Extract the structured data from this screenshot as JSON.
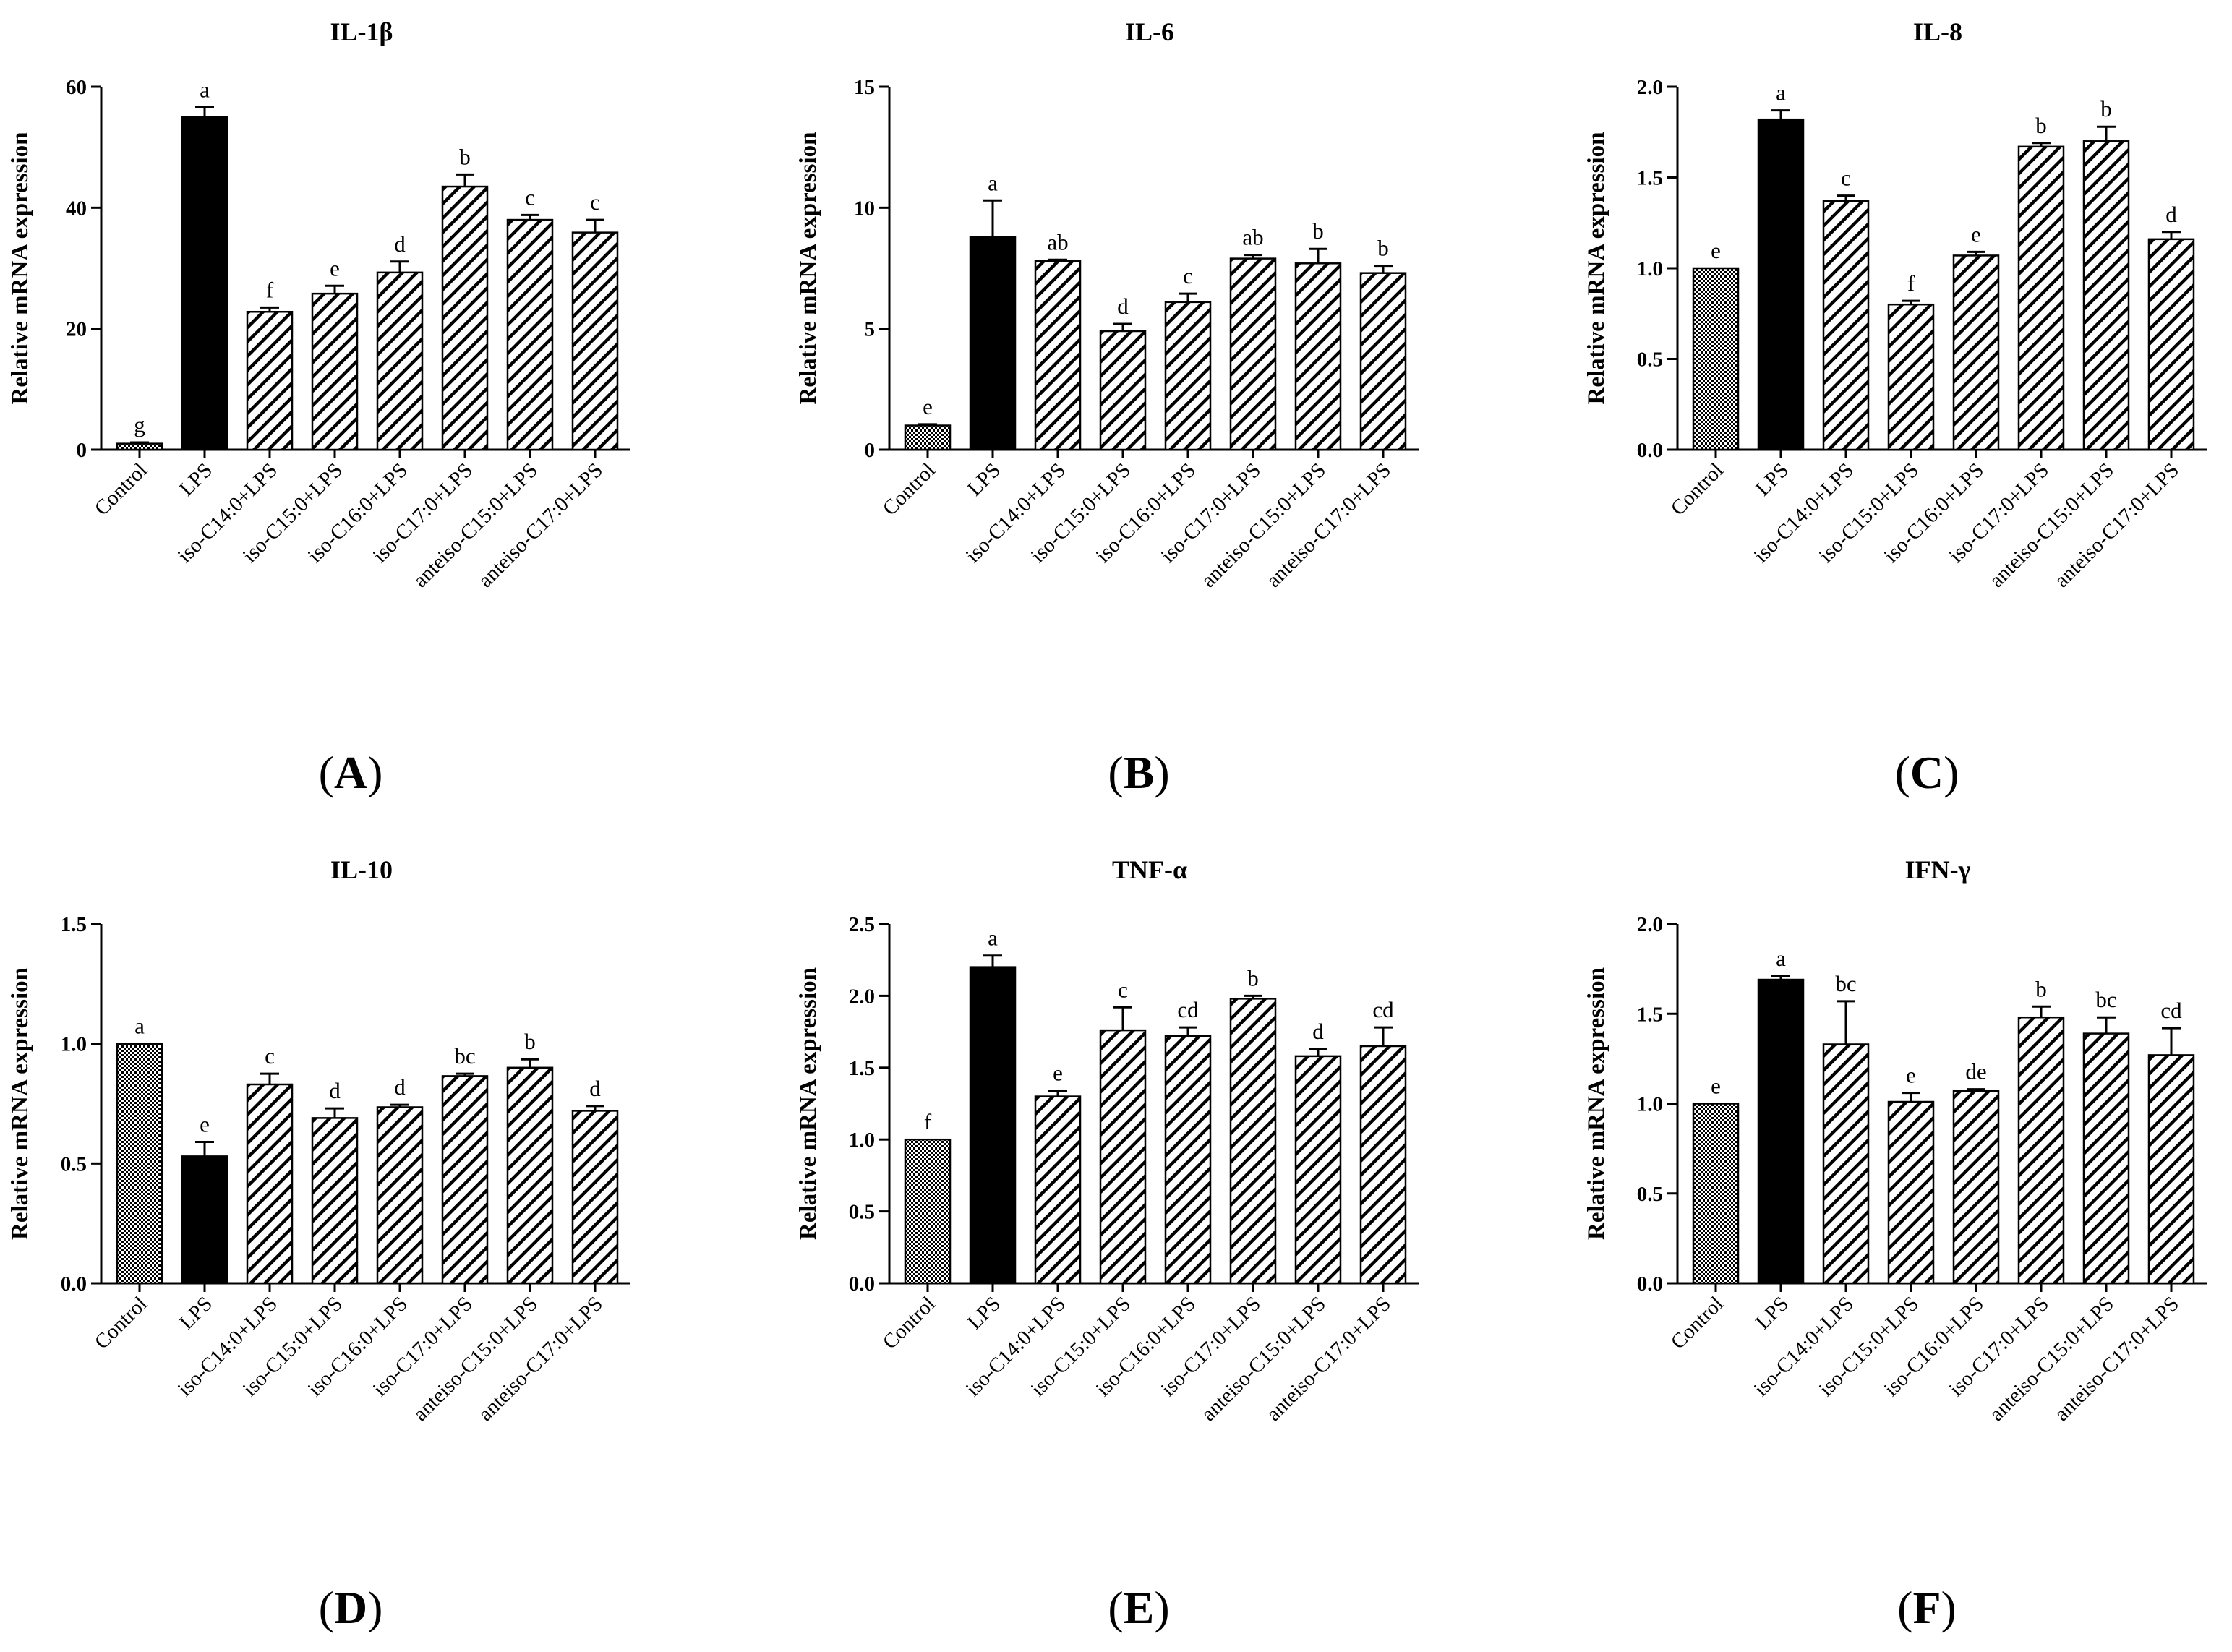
{
  "figure": {
    "categories": [
      "Control",
      "LPS",
      "iso-C14:0+LPS",
      "iso-C15:0+LPS",
      "iso-C16:0+LPS",
      "iso-C17:0+LPS",
      "anteiso-C15:0+LPS",
      "anteiso-C17:0+LPS"
    ],
    "bar_fills": [
      "checker",
      "solid",
      "hatch",
      "hatch",
      "hatch",
      "hatch",
      "hatch",
      "hatch"
    ]
  },
  "chart_data": [
    {
      "panel": "A",
      "type": "bar",
      "title": "IL-1β",
      "ylabel": "Relative mRNA expression",
      "xlabel": "",
      "ylim": [
        0,
        60
      ],
      "yticks": [
        0,
        20,
        40,
        60
      ],
      "ytick_labels": [
        "0",
        "20",
        "40",
        "60"
      ],
      "categories": [
        "Control",
        "LPS",
        "iso-C14:0+LPS",
        "iso-C15:0+LPS",
        "iso-C16:0+LPS",
        "iso-C17:0+LPS",
        "anteiso-C15:0+LPS",
        "anteiso-C17:0+LPS"
      ],
      "values": [
        1.0,
        55.0,
        22.8,
        25.8,
        29.3,
        43.5,
        38.0,
        35.9
      ],
      "errors": [
        0.2,
        1.6,
        0.7,
        1.3,
        1.8,
        2.0,
        0.8,
        2.1
      ],
      "letters": [
        "g",
        "a",
        "f",
        "e",
        "d",
        "b",
        "c",
        "c"
      ],
      "panel_label": {
        "open": "(",
        "letter": "A",
        "close": ")"
      }
    },
    {
      "panel": "B",
      "type": "bar",
      "title": "IL-6",
      "ylabel": "Relative mRNA expression",
      "xlabel": "",
      "ylim": [
        0,
        15
      ],
      "yticks": [
        0,
        5,
        10,
        15
      ],
      "ytick_labels": [
        "0",
        "5",
        "10",
        "15"
      ],
      "categories": [
        "Control",
        "LPS",
        "iso-C14:0+LPS",
        "iso-C15:0+LPS",
        "iso-C16:0+LPS",
        "iso-C17:0+LPS",
        "anteiso-C15:0+LPS",
        "anteiso-C17:0+LPS"
      ],
      "values": [
        1.0,
        8.8,
        7.8,
        4.9,
        6.1,
        7.9,
        7.7,
        7.3
      ],
      "errors": [
        0.05,
        1.5,
        0.05,
        0.3,
        0.35,
        0.15,
        0.6,
        0.3
      ],
      "letters": [
        "e",
        "a",
        "ab",
        "d",
        "c",
        "ab",
        "b",
        "b"
      ],
      "panel_label": {
        "open": "(",
        "letter": "B",
        "close": ")"
      }
    },
    {
      "panel": "C",
      "type": "bar",
      "title": "IL-8",
      "ylabel": "Relative mRNA expression",
      "xlabel": "",
      "ylim": [
        0,
        2.0
      ],
      "yticks": [
        0,
        0.5,
        1.0,
        1.5,
        2.0
      ],
      "ytick_labels": [
        "0.0",
        "0.5",
        "1.0",
        "1.5",
        "2.0"
      ],
      "categories": [
        "Control",
        "LPS",
        "iso-C14:0+LPS",
        "iso-C15:0+LPS",
        "iso-C16:0+LPS",
        "iso-C17:0+LPS",
        "anteiso-C15:0+LPS",
        "anteiso-C17:0+LPS"
      ],
      "values": [
        1.0,
        1.82,
        1.37,
        0.8,
        1.07,
        1.67,
        1.7,
        1.16
      ],
      "errors": [
        0.0,
        0.05,
        0.03,
        0.02,
        0.02,
        0.02,
        0.08,
        0.04
      ],
      "letters": [
        "e",
        "a",
        "c",
        "f",
        "e",
        "b",
        "b",
        "d"
      ],
      "panel_label": {
        "open": "(",
        "letter": "C",
        "close": ")"
      }
    },
    {
      "panel": "D",
      "type": "bar",
      "title": "IL-10",
      "ylabel": "Relative mRNA expression",
      "xlabel": "",
      "ylim": [
        0,
        1.5
      ],
      "yticks": [
        0,
        0.5,
        1.0,
        1.5
      ],
      "ytick_labels": [
        "0.0",
        "0.5",
        "1.0",
        "1.5"
      ],
      "categories": [
        "Control",
        "LPS",
        "iso-C14:0+LPS",
        "iso-C15:0+LPS",
        "iso-C16:0+LPS",
        "iso-C17:0+LPS",
        "anteiso-C15:0+LPS",
        "anteiso-C17:0+LPS"
      ],
      "values": [
        1.0,
        0.53,
        0.83,
        0.69,
        0.735,
        0.865,
        0.9,
        0.72
      ],
      "errors": [
        0.0,
        0.06,
        0.045,
        0.04,
        0.01,
        0.01,
        0.035,
        0.02
      ],
      "letters": [
        "a",
        "e",
        "c",
        "d",
        "d",
        "bc",
        "b",
        "d"
      ],
      "panel_label": {
        "open": "(",
        "letter": "D",
        "close": ")"
      }
    },
    {
      "panel": "E",
      "type": "bar",
      "title": "TNF-α",
      "ylabel": "Relative mRNA expression",
      "xlabel": "",
      "ylim": [
        0,
        2.5
      ],
      "yticks": [
        0,
        0.5,
        1.0,
        1.5,
        2.0,
        2.5
      ],
      "ytick_labels": [
        "0.0",
        "0.5",
        "1.0",
        "1.5",
        "2.0",
        "2.5"
      ],
      "categories": [
        "Control",
        "LPS",
        "iso-C14:0+LPS",
        "iso-C15:0+LPS",
        "iso-C16:0+LPS",
        "iso-C17:0+LPS",
        "anteiso-C15:0+LPS",
        "anteiso-C17:0+LPS"
      ],
      "values": [
        1.0,
        2.2,
        1.3,
        1.76,
        1.72,
        1.98,
        1.58,
        1.65
      ],
      "errors": [
        0.0,
        0.08,
        0.04,
        0.16,
        0.06,
        0.02,
        0.05,
        0.13
      ],
      "letters": [
        "f",
        "a",
        "e",
        "c",
        "cd",
        "b",
        "d",
        "cd"
      ],
      "panel_label": {
        "open": "(",
        "letter": "E",
        "close": ")"
      }
    },
    {
      "panel": "F",
      "type": "bar",
      "title": "IFN-γ",
      "ylabel": "Relative mRNA expression",
      "xlabel": "",
      "ylim": [
        0,
        2.0
      ],
      "yticks": [
        0,
        0.5,
        1.0,
        1.5,
        2.0
      ],
      "ytick_labels": [
        "0.0",
        "0.5",
        "1.0",
        "1.5",
        "2.0"
      ],
      "categories": [
        "Control",
        "LPS",
        "iso-C14:0+LPS",
        "iso-C15:0+LPS",
        "iso-C16:0+LPS",
        "iso-C17:0+LPS",
        "anteiso-C15:0+LPS",
        "anteiso-C17:0+LPS"
      ],
      "values": [
        1.0,
        1.69,
        1.33,
        1.01,
        1.07,
        1.48,
        1.39,
        1.27
      ],
      "errors": [
        0.0,
        0.02,
        0.24,
        0.05,
        0.01,
        0.06,
        0.09,
        0.15
      ],
      "letters": [
        "e",
        "a",
        "bc",
        "e",
        "de",
        "b",
        "bc",
        "cd"
      ],
      "panel_label": {
        "open": "(",
        "letter": "F",
        "close": ")"
      }
    }
  ]
}
